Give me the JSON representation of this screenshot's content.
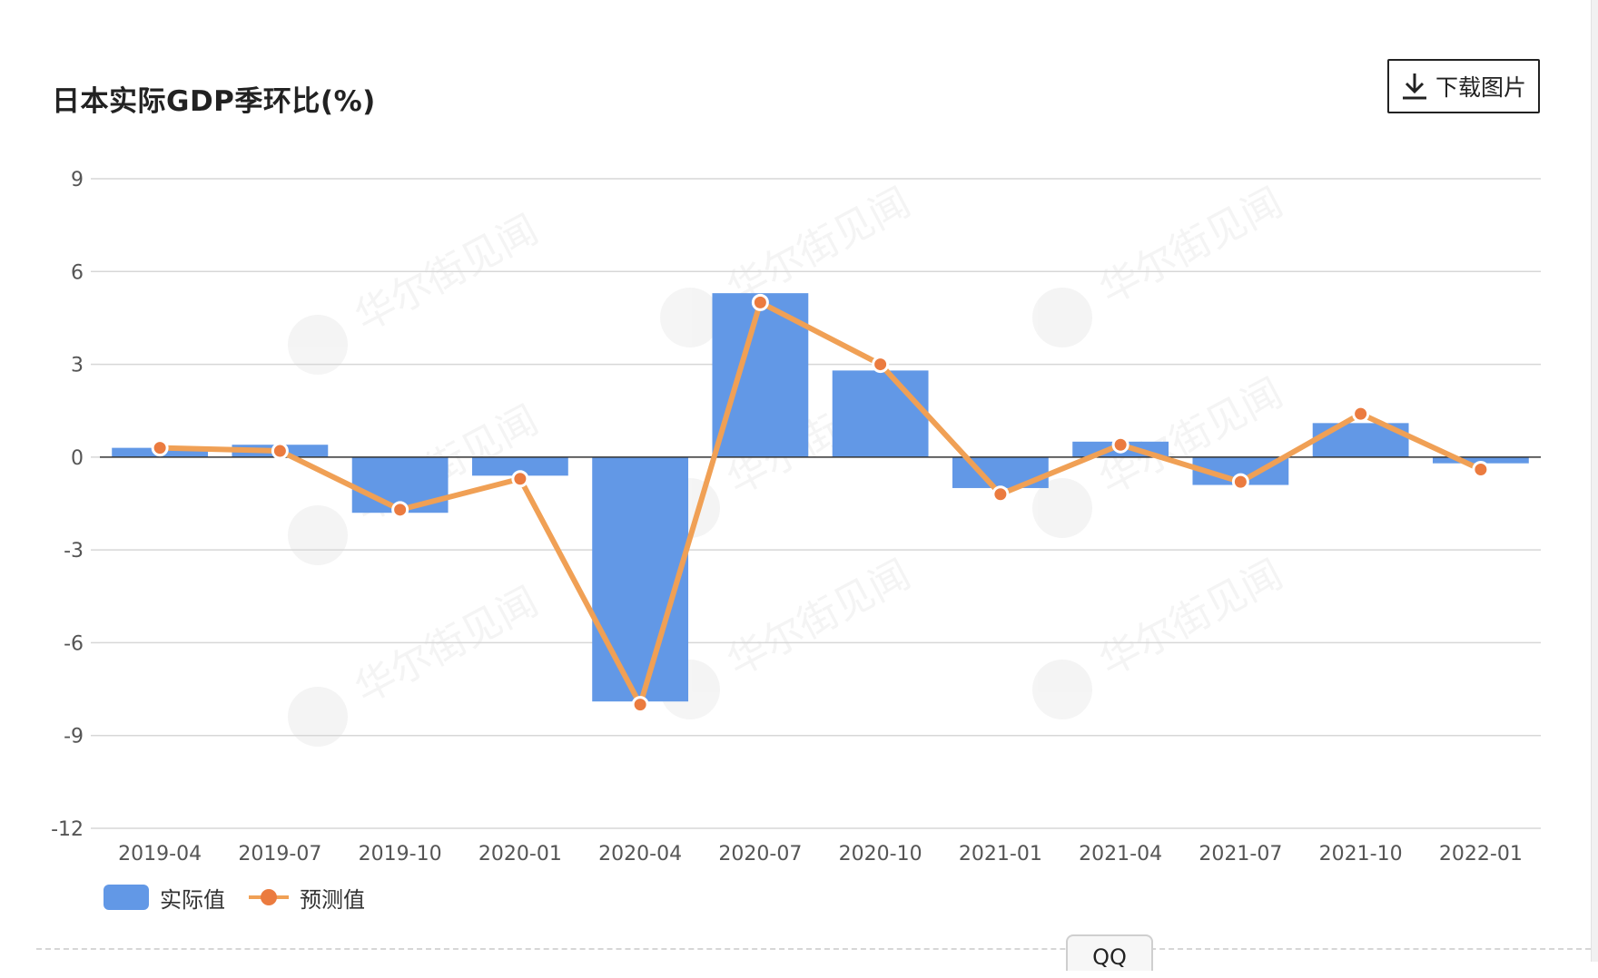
{
  "title": "日本实际GDP季环比(%)",
  "toolbar": {
    "download_label": "下载图片"
  },
  "watermark": "华尔街见闻",
  "bottom_tab": "QQ",
  "colors": {
    "bar": "#6298e6",
    "line": "#f0a055",
    "point": "#eb7b3f",
    "grid": "#d7d7d7",
    "axis_text": "#555555"
  },
  "chart_data": {
    "type": "bar",
    "title": "日本实际GDP季环比(%)",
    "categories": [
      "2019-04",
      "2019-07",
      "2019-10",
      "2020-01",
      "2020-04",
      "2020-07",
      "2020-10",
      "2021-01",
      "2021-04",
      "2021-07",
      "2021-10",
      "2022-01"
    ],
    "ylim": [
      -12,
      9
    ],
    "yticks": [
      9,
      6,
      3,
      0,
      -3,
      -6,
      -9,
      -12
    ],
    "grid": true,
    "legend": "bottom-left",
    "series": [
      {
        "name": "实际值",
        "type": "bar",
        "values": [
          0.3,
          0.4,
          -1.8,
          -0.6,
          -7.9,
          5.3,
          2.8,
          -1.0,
          0.5,
          -0.9,
          1.1,
          -0.2
        ]
      },
      {
        "name": "预测值",
        "type": "line",
        "values": [
          0.3,
          0.2,
          -1.7,
          -0.7,
          -8.0,
          5.0,
          3.0,
          -1.2,
          0.4,
          -0.8,
          1.4,
          -0.4
        ]
      }
    ]
  }
}
